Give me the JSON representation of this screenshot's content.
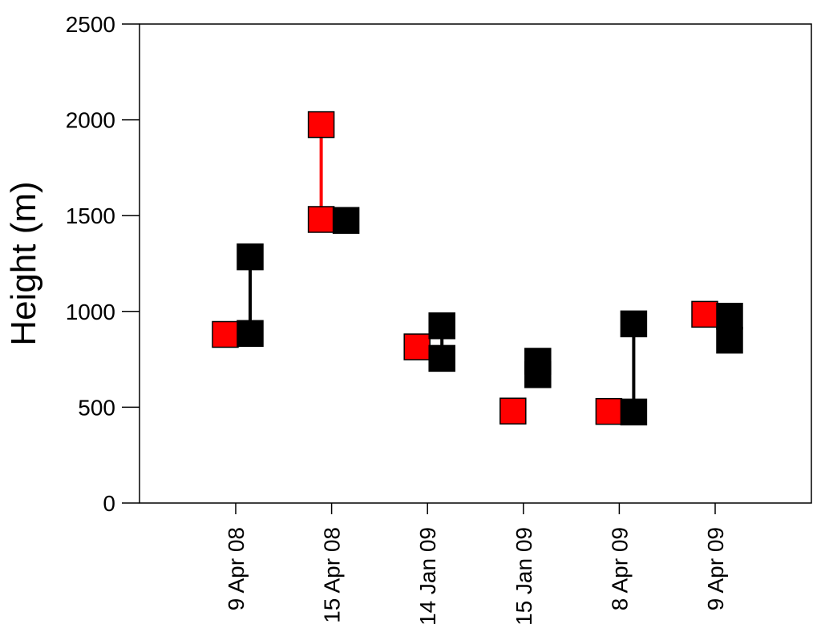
{
  "chart_data": {
    "type": "scatter",
    "title": "",
    "xlabel": "",
    "ylabel": "Height (m)",
    "ylim": [
      0,
      2500
    ],
    "yticks": [
      0,
      500,
      1000,
      1500,
      2000,
      2500
    ],
    "categories": [
      "9 Apr 08",
      "15 Apr 08",
      "14 Jan 09",
      "15 Jan 09",
      "8 Apr 09",
      "9 Apr 09"
    ],
    "grid": false,
    "series": [
      {
        "color": "#ff0000",
        "points": [
          {
            "category": "9 Apr 08",
            "values": [
              880
            ]
          },
          {
            "category": "15 Apr 08",
            "values": [
              1480,
              1975
            ]
          },
          {
            "category": "14 Jan 09",
            "values": [
              815
            ]
          },
          {
            "category": "15 Jan 09",
            "values": [
              480
            ]
          },
          {
            "category": "8 Apr 09",
            "values": [
              478
            ]
          },
          {
            "category": "9 Apr 09",
            "values": [
              985
            ]
          }
        ]
      },
      {
        "color": "#000000",
        "points": [
          {
            "category": "9 Apr 08",
            "values": [
              885,
              1285
            ]
          },
          {
            "category": "15 Apr 08",
            "values": [
              1475
            ]
          },
          {
            "category": "14 Jan 09",
            "values": [
              755,
              925
            ]
          },
          {
            "category": "15 Jan 09",
            "values": [
              670,
              740
            ]
          },
          {
            "category": "8 Apr 09",
            "values": [
              475,
              935
            ]
          },
          {
            "category": "9 Apr 09",
            "values": [
              850,
              975
            ]
          }
        ]
      }
    ]
  }
}
